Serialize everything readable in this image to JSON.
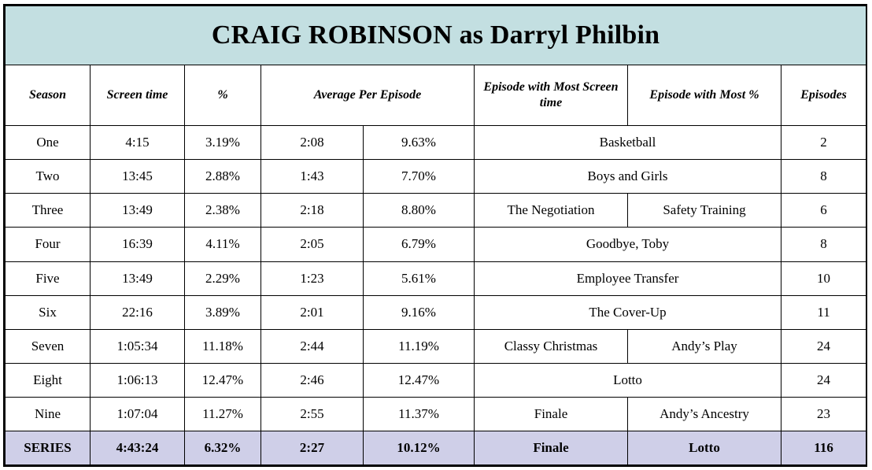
{
  "title": "CRAIG ROBINSON as Darryl Philbin",
  "headers": {
    "season": "Season",
    "screen_time": "Screen time",
    "percent": "%",
    "average_per_episode": "Average Per Episode",
    "most_screen_time": "Episode with Most Screen time",
    "most_percent": "Episode with Most %",
    "episodes": "Episodes"
  },
  "rows": [
    {
      "season": "One",
      "screen_time": "4:15",
      "percent": "3.19%",
      "avg_time": "2:08",
      "avg_percent": "9.63%",
      "most_time": "Basketball",
      "most_percent": "",
      "episodes": "2"
    },
    {
      "season": "Two",
      "screen_time": "13:45",
      "percent": "2.88%",
      "avg_time": "1:43",
      "avg_percent": "7.70%",
      "most_time": "Boys and Girls",
      "most_percent": "",
      "episodes": "8"
    },
    {
      "season": "Three",
      "screen_time": "13:49",
      "percent": "2.38%",
      "avg_time": "2:18",
      "avg_percent": "8.80%",
      "most_time": "The Negotiation",
      "most_percent": "Safety Training",
      "episodes": "6"
    },
    {
      "season": "Four",
      "screen_time": "16:39",
      "percent": "4.11%",
      "avg_time": "2:05",
      "avg_percent": "6.79%",
      "most_time": "Goodbye, Toby",
      "most_percent": "",
      "episodes": "8"
    },
    {
      "season": "Five",
      "screen_time": "13:49",
      "percent": "2.29%",
      "avg_time": "1:23",
      "avg_percent": "5.61%",
      "most_time": "Employee Transfer",
      "most_percent": "",
      "episodes": "10"
    },
    {
      "season": "Six",
      "screen_time": "22:16",
      "percent": "3.89%",
      "avg_time": "2:01",
      "avg_percent": "9.16%",
      "most_time": "The Cover-Up",
      "most_percent": "",
      "episodes": "11"
    },
    {
      "season": "Seven",
      "screen_time": "1:05:34",
      "percent": "11.18%",
      "avg_time": "2:44",
      "avg_percent": "11.19%",
      "most_time": "Classy Christmas",
      "most_percent": "Andy’s Play",
      "episodes": "24"
    },
    {
      "season": "Eight",
      "screen_time": "1:06:13",
      "percent": "12.47%",
      "avg_time": "2:46",
      "avg_percent": "12.47%",
      "most_time": "Lotto",
      "most_percent": "",
      "episodes": "24"
    },
    {
      "season": "Nine",
      "screen_time": "1:07:04",
      "percent": "11.27%",
      "avg_time": "2:55",
      "avg_percent": "11.37%",
      "most_time": "Finale",
      "most_percent": "Andy’s Ancestry",
      "episodes": "23"
    }
  ],
  "series": {
    "season": "SERIES",
    "screen_time": "4:43:24",
    "percent": "6.32%",
    "avg_time": "2:27",
    "avg_percent": "10.12%",
    "most_time": "Finale",
    "most_percent": "Lotto",
    "episodes": "116"
  }
}
